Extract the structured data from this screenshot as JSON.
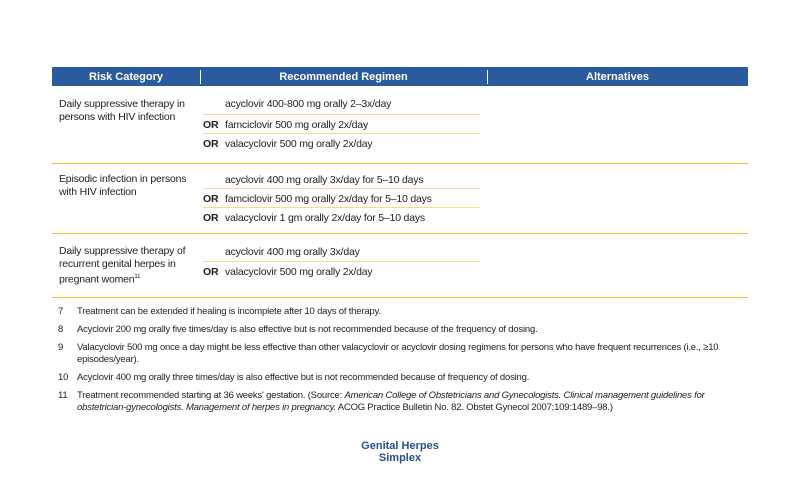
{
  "headers": [
    "Risk Category",
    "Recommended Regimen",
    "Alternatives"
  ],
  "rows": [
    {
      "risk": "Daily suppressive therapy in persons with HIV infection",
      "regimens": [
        {
          "or": "",
          "text": "acyclovir 400-800 mg orally 2–3x/day"
        },
        {
          "or": "OR",
          "text": "famciclovir 500 mg orally 2x/day"
        },
        {
          "or": "OR",
          "text": "valacyclovir 500 mg orally 2x/day"
        }
      ]
    },
    {
      "risk": "Episodic infection in persons with HIV infection",
      "regimens": [
        {
          "or": "",
          "text": "acyclovir 400 mg orally 3x/day for 5–10 days"
        },
        {
          "or": "OR",
          "text": "famciclovir 500 mg orally 2x/day for 5–10 days"
        },
        {
          "or": "OR",
          "text": "valacyclovir 1 gm orally 2x/day for 5–10 days"
        }
      ]
    },
    {
      "risk": "Daily suppressive therapy of recurrent genital herpes in pregnant women",
      "risk_sup": "11",
      "regimens": [
        {
          "or": "",
          "text": "acyclovir 400 mg orally 3x/day"
        },
        {
          "or": "OR",
          "text": "valacyclovir 500 mg orally 2x/day"
        }
      ]
    }
  ],
  "notes": [
    {
      "n": "7",
      "text": "Treatment can be extended if healing is incomplete after 10 days of therapy."
    },
    {
      "n": "8",
      "text": "Acyclovir 200 mg orally five times/day is also effective but is not recommended because of the frequency of dosing."
    },
    {
      "n": "9",
      "text": "Valacyclovir 500 mg once a day might be less effective than other valacyclovir or acyclovir dosing regimens for persons who have frequent recurrences (i.e., ≥10 episodes/year)."
    },
    {
      "n": "10",
      "text": "Acyclovir 400 mg orally three times/day is also effective but is not recommended because of frequency of dosing."
    },
    {
      "n": "11",
      "pre": "Treatment recommended starting at 36 weeks' gestation. (Source: ",
      "ital": "American College of Obstetricians and Gynecologists. Clinical management guidelines for obstetrician-gynecologists. Management of herpes in pregnancy.",
      "post": " ACOG Practice Bulletin No. 82. Obstet Gynecol 2007;109:1489–98.)"
    }
  ],
  "footer": {
    "line1": "Genital Herpes",
    "line2": "Simplex"
  },
  "colors": {
    "header": "#2a5b9f",
    "rule": "#f2c230"
  }
}
